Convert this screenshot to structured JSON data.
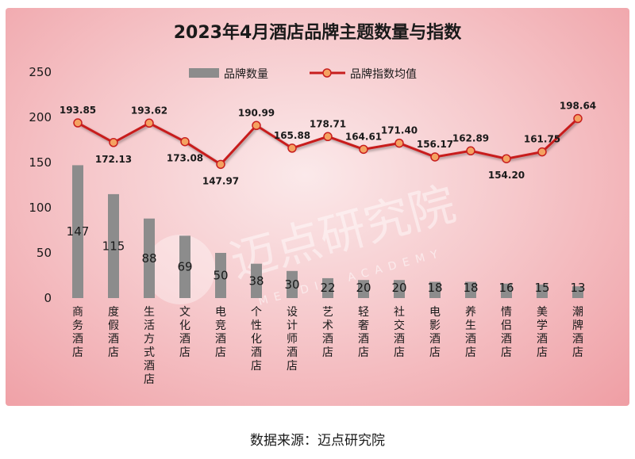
{
  "source": "数据来源：迈点研究院",
  "watermark": {
    "brand": "迈点研究院",
    "subtitle": "MEADIN ACADEMY"
  },
  "colors": {
    "bar": "#8c8c8c",
    "line": "#c81e1e",
    "marker_fill": "#f4a261",
    "marker_stroke": "#c81e1e"
  },
  "chart_data": {
    "type": "bar",
    "title": "2023年4月酒店品牌主题数量与指数",
    "xlabel": "",
    "ylabel": "",
    "ylim": [
      0,
      250
    ],
    "yticks": [
      0,
      50,
      100,
      150,
      200,
      250
    ],
    "grid": false,
    "legend_position": "top-center",
    "categories": [
      "商务酒店",
      "度假酒店",
      "生活方式酒店",
      "文化酒店",
      "电竞酒店",
      "个性化酒店",
      "设计师酒店",
      "艺术酒店",
      "轻奢酒店",
      "社交酒店",
      "电影酒店",
      "养生酒店",
      "情侣酒店",
      "美学酒店",
      "潮牌酒店"
    ],
    "series": [
      {
        "name": "品牌数量",
        "type": "bar",
        "values": [
          147,
          115,
          88,
          69,
          50,
          38,
          30,
          22,
          20,
          20,
          18,
          18,
          16,
          15,
          13
        ]
      },
      {
        "name": "品牌指数均值",
        "type": "line",
        "values": [
          193.85,
          172.13,
          193.62,
          173.08,
          147.97,
          190.99,
          165.88,
          178.71,
          164.61,
          171.4,
          156.17,
          162.89,
          154.2,
          161.75,
          198.64
        ],
        "label_text": [
          "193.85",
          "172.13",
          "193.62",
          "173.08",
          "147.97",
          "190.99",
          "165.88",
          "178.71",
          "164.61",
          "171.40",
          "156.17",
          "162.89",
          "154.20",
          "161.75",
          "198.64"
        ]
      }
    ]
  }
}
